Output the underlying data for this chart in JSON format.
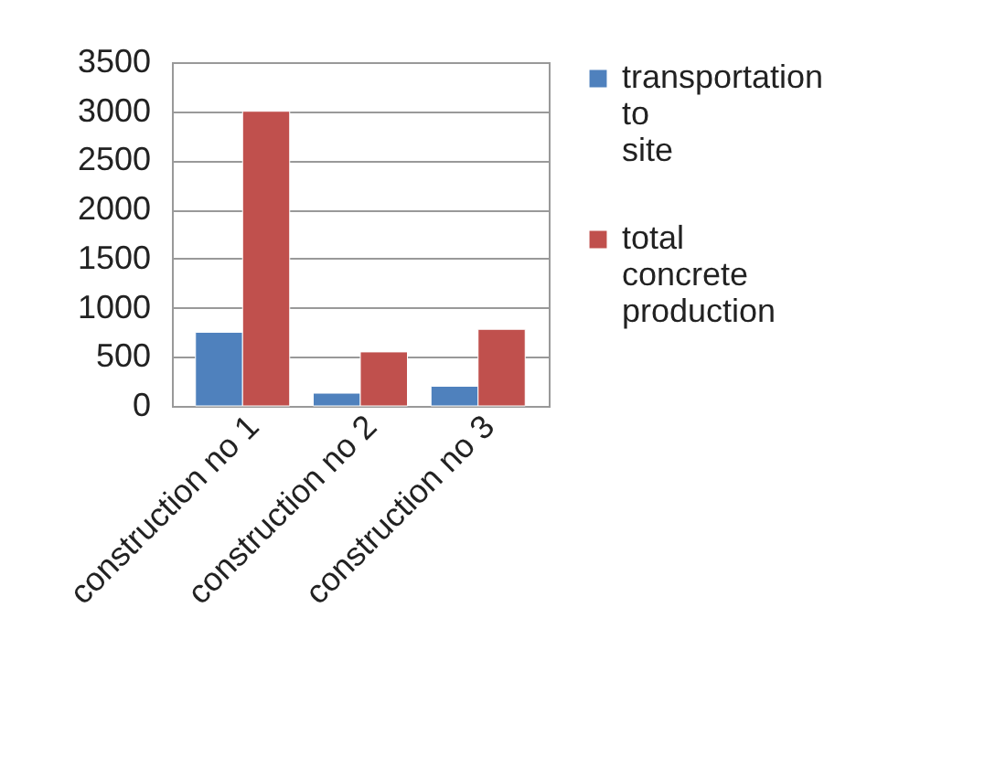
{
  "chart_data": {
    "type": "bar",
    "categories": [
      "construction no 1",
      "construction no 2",
      "construction no 3"
    ],
    "series": [
      {
        "name": "transportation to site",
        "color": "#4f81bd",
        "values": [
          750,
          130,
          200
        ]
      },
      {
        "name": "total concrete production",
        "color": "#c0504d",
        "values": [
          3000,
          550,
          780
        ]
      }
    ],
    "ylim": [
      0,
      3500
    ],
    "yticks": [
      0,
      500,
      1000,
      1500,
      2000,
      2500,
      3000,
      3500
    ],
    "grid": "y",
    "legend": "right"
  }
}
